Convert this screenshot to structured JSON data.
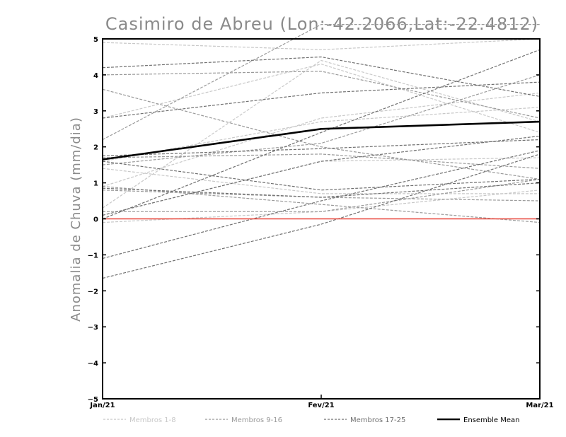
{
  "chart_data": {
    "type": "line",
    "title": "Casimiro de Abreu (Lon:-42.2066,Lat:-22.4812)",
    "ylabel": "Anomalia de Chuva (mm/dia)",
    "xlabel": "",
    "categories": [
      "Jan/21",
      "Fev/21",
      "Mar/21"
    ],
    "ylim": [
      -5,
      5
    ],
    "yticks": [
      -5,
      -4,
      -3,
      -2,
      -1,
      0,
      1,
      2,
      3,
      4,
      5
    ],
    "reference_line": {
      "value": 0,
      "color": "#e8463a"
    },
    "series": [
      {
        "group": "Membros 1-8",
        "color": "#c8c8c8",
        "values": [
          0.3,
          4.4,
          2.7
        ]
      },
      {
        "group": "Membros 1-8",
        "color": "#c8c8c8",
        "values": [
          0.9,
          2.8,
          3.5
        ]
      },
      {
        "group": "Membros 1-8",
        "color": "#c8c8c8",
        "values": [
          4.9,
          4.7,
          5.0
        ]
      },
      {
        "group": "Membros 1-8",
        "color": "#c8c8c8",
        "values": [
          0.1,
          1.6,
          1.7
        ]
      },
      {
        "group": "Membros 1-8",
        "color": "#c8c8c8",
        "values": [
          2.8,
          4.3,
          2.4
        ]
      },
      {
        "group": "Membros 1-8",
        "color": "#c8c8c8",
        "values": [
          1.4,
          0.7,
          0.7
        ]
      },
      {
        "group": "Membros 1-8",
        "color": "#c8c8c8",
        "values": [
          -0.1,
          0.2,
          0.8
        ]
      },
      {
        "group": "Membros 1-8",
        "color": "#c8c8c8",
        "values": [
          1.6,
          2.7,
          3.1
        ]
      },
      {
        "group": "Membros 9-16",
        "color": "#9a9a9a",
        "values": [
          4.0,
          4.1,
          2.8
        ]
      },
      {
        "group": "Membros 9-16",
        "color": "#9a9a9a",
        "values": [
          3.6,
          2.0,
          1.1
        ]
      },
      {
        "group": "Membros 9-16",
        "color": "#9a9a9a",
        "values": [
          2.2,
          5.4,
          5.4
        ]
      },
      {
        "group": "Membros 9-16",
        "color": "#9a9a9a",
        "values": [
          1.5,
          2.1,
          4.0
        ]
      },
      {
        "group": "Membros 9-16",
        "color": "#9a9a9a",
        "values": [
          0.8,
          0.6,
          0.5
        ]
      },
      {
        "group": "Membros 9-16",
        "color": "#9a9a9a",
        "values": [
          0.2,
          0.2,
          1.1
        ]
      },
      {
        "group": "Membros 9-16",
        "color": "#9a9a9a",
        "values": [
          1.7,
          1.8,
          1.4
        ]
      },
      {
        "group": "Membros 9-16",
        "color": "#9a9a9a",
        "values": [
          0.9,
          0.4,
          -0.1
        ]
      },
      {
        "group": "Membros 17-25",
        "color": "#707070",
        "values": [
          4.2,
          4.5,
          3.4
        ]
      },
      {
        "group": "Membros 17-25",
        "color": "#707070",
        "values": [
          2.8,
          3.5,
          3.8
        ]
      },
      {
        "group": "Membros 17-25",
        "color": "#707070",
        "values": [
          1.6,
          0.8,
          1.1
        ]
      },
      {
        "group": "Membros 17-25",
        "color": "#707070",
        "values": [
          -1.1,
          0.5,
          1.9
        ]
      },
      {
        "group": "Membros 17-25",
        "color": "#707070",
        "values": [
          -1.65,
          -0.15,
          1.8
        ]
      },
      {
        "group": "Membros 17-25",
        "color": "#707070",
        "values": [
          0.0,
          2.4,
          4.7
        ]
      },
      {
        "group": "Membros 17-25",
        "color": "#707070",
        "values": [
          1.75,
          1.95,
          2.2
        ]
      },
      {
        "group": "Membros 17-25",
        "color": "#707070",
        "values": [
          0.85,
          0.6,
          1.0
        ]
      },
      {
        "group": "Membros 17-25",
        "color": "#707070",
        "values": [
          0.1,
          1.6,
          2.3
        ]
      }
    ],
    "ensemble_mean": {
      "name": "Ensemble Mean",
      "color": "#000000",
      "values": [
        1.65,
        2.5,
        2.7
      ]
    },
    "legend": {
      "placement": "bottom",
      "items": [
        {
          "label": "Membros 1-8",
          "color": "#c8c8c8",
          "style": "dashed"
        },
        {
          "label": "Membros 9-16",
          "color": "#9a9a9a",
          "style": "dashed"
        },
        {
          "label": "Membros 17-25",
          "color": "#707070",
          "style": "dashed"
        },
        {
          "label": "Ensemble Mean",
          "color": "#000000",
          "style": "solid"
        }
      ]
    }
  }
}
